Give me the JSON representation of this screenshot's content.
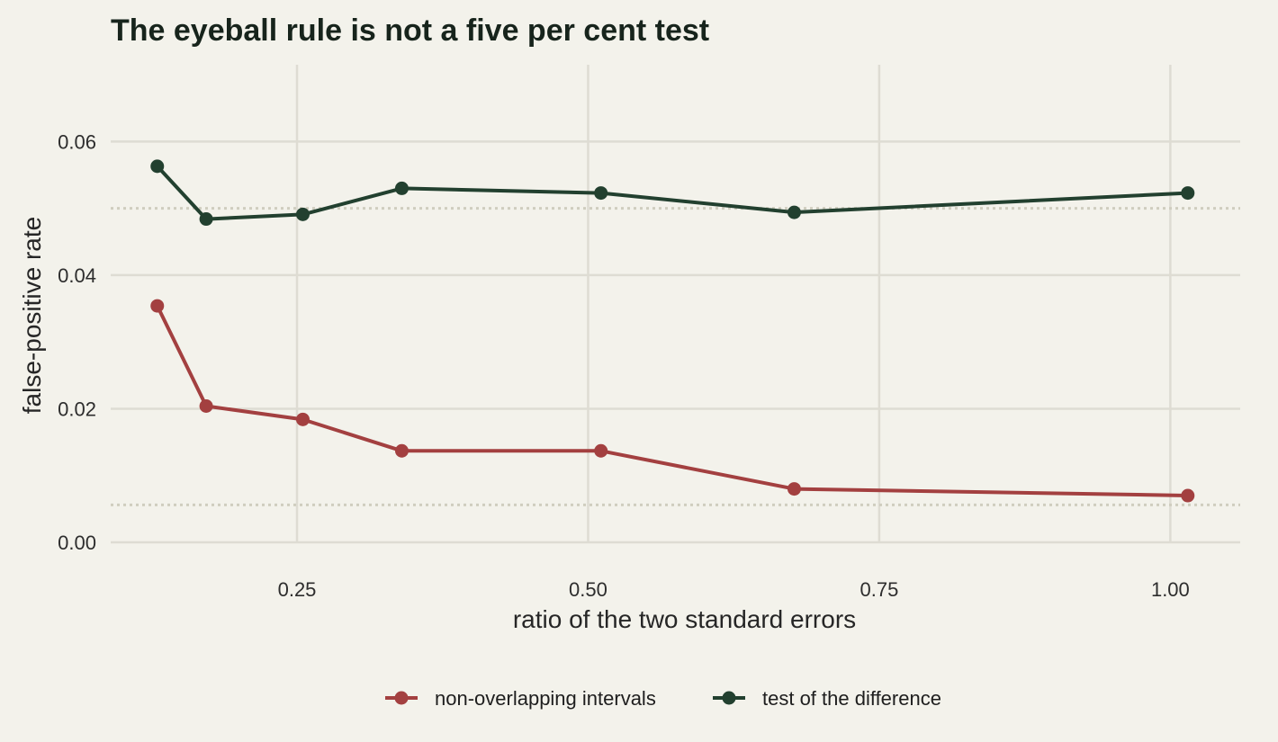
{
  "chart_data": {
    "type": "line",
    "title": "The eyeball rule is not a five per cent test",
    "xlabel": "ratio of the two standard errors",
    "ylabel": "false-positive rate",
    "xlim": [
      0.09,
      1.06
    ],
    "ylim": [
      0,
      0.0715
    ],
    "x_ticks": [
      0.25,
      0.5,
      0.75,
      1.0
    ],
    "x_tick_labels": [
      "0.25",
      "0.50",
      "0.75",
      "1.00"
    ],
    "y_ticks": [
      0,
      0.02,
      0.04,
      0.06
    ],
    "y_tick_labels": [
      "0.00",
      "0.02",
      "0.04",
      "0.06"
    ],
    "grid": true,
    "legend_position": "bottom",
    "reference_lines": [
      0.05,
      0.0056
    ],
    "reference_color": "#cfcdbf",
    "x": [
      0.13,
      0.172,
      0.255,
      0.34,
      0.511,
      0.677,
      1.015
    ],
    "series": [
      {
        "name": "non-overlapping intervals",
        "color": "#a34040",
        "values": [
          0.0354,
          0.0204,
          0.0184,
          0.0137,
          0.0137,
          0.008,
          0.007
        ]
      },
      {
        "name": "test of the difference",
        "color": "#22402f",
        "values": [
          0.0563,
          0.0484,
          0.0491,
          0.053,
          0.0523,
          0.0494,
          0.0523
        ]
      }
    ]
  }
}
